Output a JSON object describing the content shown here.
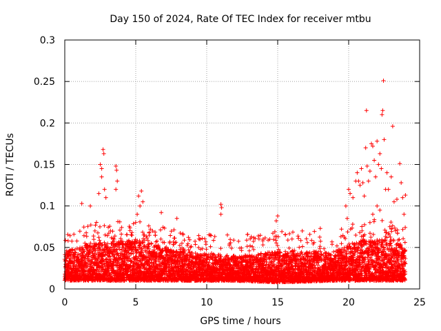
{
  "chart_data": {
    "type": "scatter",
    "title": "Day 150 of 2024, Rate Of TEC Index for receiver mtbu",
    "xlabel": "GPS time / hours",
    "ylabel": "ROTI / TECUs",
    "xlim": [
      0,
      25
    ],
    "ylim": [
      0,
      0.3
    ],
    "x_ticks": [
      0,
      5,
      10,
      15,
      20,
      25
    ],
    "x_tick_labels": [
      "0",
      "5",
      "10",
      "15",
      "20",
      "25"
    ],
    "y_ticks": [
      0,
      0.05,
      0.1,
      0.15,
      0.2,
      0.25,
      0.3
    ],
    "y_tick_labels": [
      "0",
      "0.05",
      "0.1",
      "0.15",
      "0.2",
      "0.25",
      "0.3"
    ],
    "grid": true,
    "marker": "+",
    "marker_color": "#ff0000",
    "x_range_of_points_hours": [
      0,
      24
    ],
    "time_step_hours": 0.0083,
    "baseline_envelope": [
      {
        "x": 0,
        "low": 0.01,
        "high": 0.045
      },
      {
        "x": 2,
        "low": 0.01,
        "high": 0.055
      },
      {
        "x": 5,
        "low": 0.01,
        "high": 0.06
      },
      {
        "x": 8,
        "low": 0.01,
        "high": 0.045
      },
      {
        "x": 12,
        "low": 0.01,
        "high": 0.04
      },
      {
        "x": 15,
        "low": 0.008,
        "high": 0.045
      },
      {
        "x": 19,
        "low": 0.01,
        "high": 0.045
      },
      {
        "x": 21,
        "low": 0.01,
        "high": 0.06
      },
      {
        "x": 23,
        "low": 0.01,
        "high": 0.06
      },
      {
        "x": 24,
        "low": 0.01,
        "high": 0.05
      }
    ],
    "notable_points": [
      {
        "x": 2.7,
        "y": 0.168
      },
      {
        "x": 2.75,
        "y": 0.163
      },
      {
        "x": 2.5,
        "y": 0.15
      },
      {
        "x": 2.6,
        "y": 0.145
      },
      {
        "x": 3.6,
        "y": 0.148
      },
      {
        "x": 3.65,
        "y": 0.143
      },
      {
        "x": 3.7,
        "y": 0.13
      },
      {
        "x": 3.6,
        "y": 0.12
      },
      {
        "x": 2.9,
        "y": 0.11
      },
      {
        "x": 2.8,
        "y": 0.12
      },
      {
        "x": 2.6,
        "y": 0.135
      },
      {
        "x": 1.2,
        "y": 0.103
      },
      {
        "x": 1.8,
        "y": 0.1
      },
      {
        "x": 2.4,
        "y": 0.115
      },
      {
        "x": 5.2,
        "y": 0.112
      },
      {
        "x": 5.4,
        "y": 0.118
      },
      {
        "x": 5.3,
        "y": 0.1
      },
      {
        "x": 5.5,
        "y": 0.105
      },
      {
        "x": 5.1,
        "y": 0.09
      },
      {
        "x": 6.8,
        "y": 0.092
      },
      {
        "x": 7.9,
        "y": 0.085
      },
      {
        "x": 11.0,
        "y": 0.102
      },
      {
        "x": 11.05,
        "y": 0.098
      },
      {
        "x": 11.0,
        "y": 0.09
      },
      {
        "x": 15.0,
        "y": 0.088
      },
      {
        "x": 14.9,
        "y": 0.082
      },
      {
        "x": 18.0,
        "y": 0.073
      },
      {
        "x": 19.8,
        "y": 0.1
      },
      {
        "x": 19.9,
        "y": 0.085
      },
      {
        "x": 20.0,
        "y": 0.12
      },
      {
        "x": 20.1,
        "y": 0.115
      },
      {
        "x": 20.3,
        "y": 0.11
      },
      {
        "x": 20.5,
        "y": 0.13
      },
      {
        "x": 20.6,
        "y": 0.14
      },
      {
        "x": 20.7,
        "y": 0.13
      },
      {
        "x": 20.8,
        "y": 0.125
      },
      {
        "x": 20.9,
        "y": 0.145
      },
      {
        "x": 21.0,
        "y": 0.128
      },
      {
        "x": 21.1,
        "y": 0.112
      },
      {
        "x": 21.2,
        "y": 0.17
      },
      {
        "x": 21.25,
        "y": 0.215
      },
      {
        "x": 21.3,
        "y": 0.148
      },
      {
        "x": 21.4,
        "y": 0.13
      },
      {
        "x": 21.5,
        "y": 0.142
      },
      {
        "x": 21.6,
        "y": 0.175
      },
      {
        "x": 21.7,
        "y": 0.172
      },
      {
        "x": 21.8,
        "y": 0.155
      },
      {
        "x": 21.9,
        "y": 0.135
      },
      {
        "x": 22.0,
        "y": 0.178
      },
      {
        "x": 22.1,
        "y": 0.15
      },
      {
        "x": 22.2,
        "y": 0.163
      },
      {
        "x": 22.3,
        "y": 0.145
      },
      {
        "x": 22.35,
        "y": 0.21
      },
      {
        "x": 22.4,
        "y": 0.215
      },
      {
        "x": 22.45,
        "y": 0.251
      },
      {
        "x": 22.5,
        "y": 0.18
      },
      {
        "x": 22.6,
        "y": 0.12
      },
      {
        "x": 22.7,
        "y": 0.14
      },
      {
        "x": 22.8,
        "y": 0.12
      },
      {
        "x": 23.0,
        "y": 0.135
      },
      {
        "x": 23.1,
        "y": 0.196
      },
      {
        "x": 23.2,
        "y": 0.105
      },
      {
        "x": 23.4,
        "y": 0.108
      },
      {
        "x": 23.6,
        "y": 0.151
      },
      {
        "x": 23.7,
        "y": 0.128
      },
      {
        "x": 23.8,
        "y": 0.11
      },
      {
        "x": 23.9,
        "y": 0.09
      },
      {
        "x": 24.0,
        "y": 0.113
      },
      {
        "x": 21.5,
        "y": 0.08
      },
      {
        "x": 21.7,
        "y": 0.09
      },
      {
        "x": 22.0,
        "y": 0.1
      },
      {
        "x": 22.2,
        "y": 0.095
      },
      {
        "x": 22.9,
        "y": 0.075
      },
      {
        "x": 23.3,
        "y": 0.07
      }
    ]
  }
}
